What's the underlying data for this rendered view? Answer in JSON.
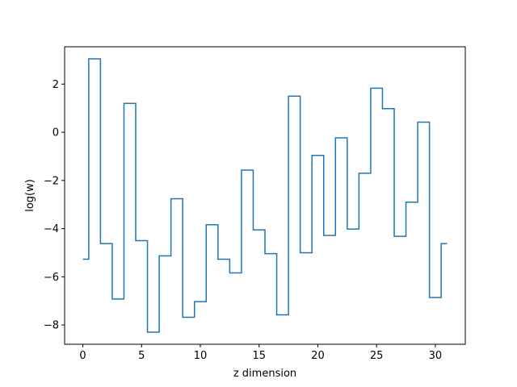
{
  "chart_data": {
    "type": "line",
    "drawstyle": "steps-mid",
    "title": "",
    "xlabel": "z dimension",
    "ylabel": "log(w)",
    "xlim": [
      -1.55,
      32.55
    ],
    "ylim": [
      -8.8,
      3.55
    ],
    "xticks": [
      0,
      5,
      10,
      15,
      20,
      25,
      30
    ],
    "yticks": [
      -8,
      -6,
      -4,
      -2,
      0,
      2
    ],
    "grid": false,
    "legend": "none",
    "series": [
      {
        "color": "#1f77b4",
        "x": [
          0,
          1,
          2,
          3,
          4,
          5,
          6,
          7,
          8,
          9,
          10,
          11,
          12,
          13,
          14,
          15,
          16,
          17,
          18,
          19,
          20,
          21,
          22,
          23,
          24,
          25,
          26,
          27,
          28,
          29,
          30,
          31
        ],
        "values": [
          -5.27,
          3.05,
          -4.62,
          -6.92,
          1.2,
          -4.5,
          -8.3,
          -5.13,
          -2.76,
          -7.68,
          -7.03,
          -3.84,
          -5.27,
          -5.84,
          -1.57,
          -4.05,
          -5.04,
          -7.58,
          1.5,
          -5.0,
          -0.96,
          -4.28,
          -0.23,
          -4.02,
          -1.7,
          1.83,
          0.98,
          -4.32,
          -2.9,
          0.42,
          -6.86,
          -4.62
        ]
      }
    ]
  }
}
